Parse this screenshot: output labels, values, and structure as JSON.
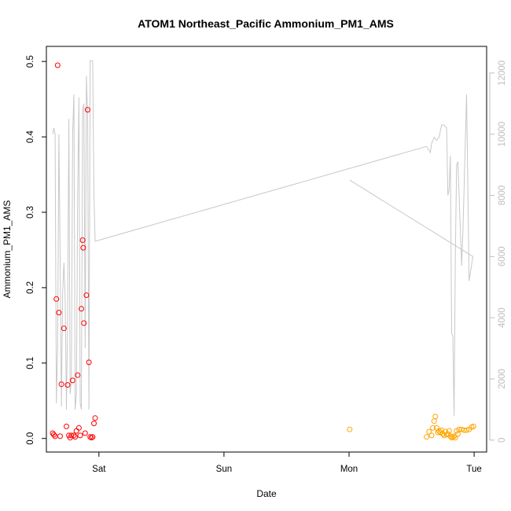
{
  "chart_data": {
    "type": "scatter",
    "title": "ATOM1 Northeast_Pacific Ammonium_PM1_AMS",
    "xlabel": "Date",
    "ylabel": "Ammonium_PM1_AMS",
    "x_ticks": [
      {
        "label": "Sat",
        "value": 1.0
      },
      {
        "label": "Sun",
        "value": 2.0
      },
      {
        "label": "Mon",
        "value": 3.0
      },
      {
        "label": "Tue",
        "value": 4.0
      }
    ],
    "xlim": [
      0.58,
      4.1
    ],
    "ylim": [
      -0.018,
      0.52
    ],
    "y_ticks": [
      0.0,
      0.1,
      0.2,
      0.3,
      0.4,
      0.5
    ],
    "y_tick_labels": [
      "0.0",
      "0.1",
      "0.2",
      "0.3",
      "0.4",
      "0.5"
    ],
    "y2_ticks": [
      0,
      2000,
      4000,
      6000,
      8000,
      10000,
      12000
    ],
    "y2_tick_labels": [
      "0",
      "2000",
      "4000",
      "6000",
      "8000",
      "10000",
      "12000"
    ],
    "y2lim": [
      -390,
      12870
    ],
    "grid": false,
    "colors": {
      "series1": "#ff0000",
      "series2": "#ffa500",
      "altitude_line": "#c8c8c8",
      "right_axis": "#bebebe",
      "axis": "#000000"
    },
    "series": [
      {
        "color": "#ff0000",
        "marker": "open-circle",
        "points": [
          [
            0.63,
            0.007
          ],
          [
            0.64,
            0.005
          ],
          [
            0.65,
            0.003
          ],
          [
            0.66,
            0.185
          ],
          [
            0.67,
            0.495
          ],
          [
            0.68,
            0.167
          ],
          [
            0.69,
            0.003
          ],
          [
            0.7,
            0.072
          ],
          [
            0.72,
            0.146
          ],
          [
            0.74,
            0.016
          ],
          [
            0.75,
            0.071
          ],
          [
            0.76,
            0.004
          ],
          [
            0.77,
            0.001
          ],
          [
            0.78,
            0.004
          ],
          [
            0.79,
            0.077
          ],
          [
            0.8,
            0.004
          ],
          [
            0.81,
            0.002
          ],
          [
            0.82,
            0.01
          ],
          [
            0.83,
            0.084
          ],
          [
            0.84,
            0.014
          ],
          [
            0.85,
            0.004
          ],
          [
            0.86,
            0.172
          ],
          [
            0.87,
            0.263
          ],
          [
            0.875,
            0.253
          ],
          [
            0.88,
            0.153
          ],
          [
            0.89,
            0.007
          ],
          [
            0.9,
            0.19
          ],
          [
            0.91,
            0.436
          ],
          [
            0.92,
            0.101
          ],
          [
            0.93,
            0.002
          ],
          [
            0.94,
            0.001
          ],
          [
            0.95,
            0.002
          ],
          [
            0.96,
            0.02
          ],
          [
            0.97,
            0.027
          ]
        ]
      },
      {
        "color": "#ffa500",
        "marker": "open-circle",
        "points": [
          [
            3.005,
            0.012
          ],
          [
            3.62,
            0.002
          ],
          [
            3.64,
            0.009
          ],
          [
            3.66,
            0.004
          ],
          [
            3.67,
            0.014
          ],
          [
            3.68,
            0.023
          ],
          [
            3.69,
            0.029
          ],
          [
            3.7,
            0.014
          ],
          [
            3.71,
            0.008
          ],
          [
            3.72,
            0.01
          ],
          [
            3.73,
            0.008
          ],
          [
            3.74,
            0.011
          ],
          [
            3.75,
            0.006
          ],
          [
            3.76,
            0.004
          ],
          [
            3.77,
            0.009
          ],
          [
            3.78,
            0.005
          ],
          [
            3.79,
            0.006
          ],
          [
            3.8,
            0.01
          ],
          [
            3.81,
            0.003
          ],
          [
            3.82,
            0.001
          ],
          [
            3.83,
            0.002
          ],
          [
            3.84,
            0.003
          ],
          [
            3.85,
            0.001
          ],
          [
            3.86,
            0.01
          ],
          [
            3.87,
            0.006
          ],
          [
            3.88,
            0.012
          ],
          [
            3.9,
            0.012
          ],
          [
            3.92,
            0.011
          ],
          [
            3.94,
            0.011
          ],
          [
            3.96,
            0.012
          ],
          [
            3.98,
            0.015
          ],
          [
            3.995,
            0.016
          ]
        ]
      },
      {
        "color": "#c8c8c8",
        "marker": "line",
        "axis": "right",
        "points": [
          [
            0.63,
            10000
          ],
          [
            0.64,
            10200
          ],
          [
            0.65,
            10000
          ],
          [
            0.66,
            1200
          ],
          [
            0.67,
            3000
          ],
          [
            0.68,
            10000
          ],
          [
            0.69,
            6000
          ],
          [
            0.7,
            1100
          ],
          [
            0.71,
            4800
          ],
          [
            0.72,
            5800
          ],
          [
            0.73,
            4600
          ],
          [
            0.74,
            1000
          ],
          [
            0.75,
            4000
          ],
          [
            0.76,
            10500
          ],
          [
            0.77,
            1500
          ],
          [
            0.78,
            2000
          ],
          [
            0.79,
            10000
          ],
          [
            0.8,
            11300
          ],
          [
            0.81,
            1000
          ],
          [
            0.82,
            1500
          ],
          [
            0.83,
            8000
          ],
          [
            0.84,
            11200
          ],
          [
            0.85,
            1200
          ],
          [
            0.86,
            1000
          ],
          [
            0.87,
            10800
          ],
          [
            0.88,
            11000
          ],
          [
            0.89,
            3000
          ],
          [
            0.9,
            11900
          ],
          [
            0.91,
            10500
          ],
          [
            0.92,
            1000
          ],
          [
            0.93,
            12400
          ],
          [
            0.94,
            12400
          ],
          [
            0.95,
            12400
          ],
          [
            0.96,
            8000
          ],
          [
            0.97,
            6500
          ],
          [
            3.62,
            9600
          ],
          [
            3.65,
            9400
          ],
          [
            3.66,
            9700
          ],
          [
            3.68,
            9900
          ],
          [
            3.7,
            9800
          ],
          [
            3.72,
            9900
          ],
          [
            3.74,
            10300
          ],
          [
            3.76,
            10300
          ],
          [
            3.78,
            10200
          ],
          [
            3.79,
            8000
          ],
          [
            3.8,
            8200
          ],
          [
            3.81,
            9300
          ],
          [
            3.82,
            3500
          ],
          [
            3.83,
            3400
          ],
          [
            3.84,
            800
          ],
          [
            3.85,
            6000
          ],
          [
            3.86,
            9000
          ],
          [
            3.87,
            9100
          ],
          [
            3.88,
            8000
          ],
          [
            3.9,
            5700
          ],
          [
            3.91,
            6800
          ],
          [
            3.92,
            8300
          ],
          [
            3.94,
            11300
          ],
          [
            3.96,
            5200
          ],
          [
            3.99,
            6000
          ],
          [
            3.005,
            8500
          ]
        ]
      }
    ]
  }
}
